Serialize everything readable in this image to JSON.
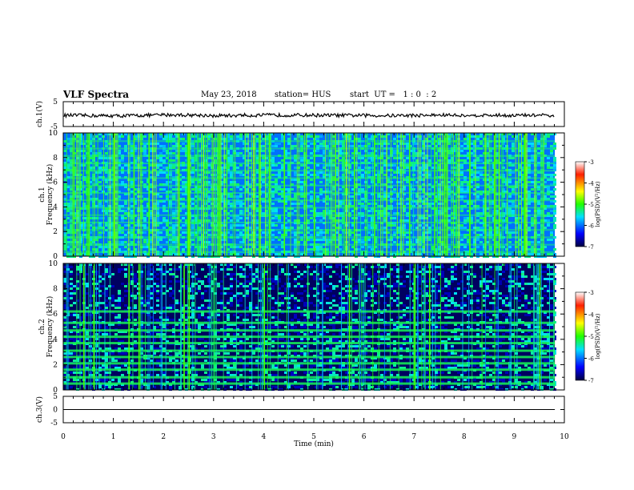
{
  "header": {
    "title": "VLF Spectra",
    "date": "May 23, 2018",
    "station": "station= HUS",
    "start": "start  UT =   1 : 0  : 2"
  },
  "chart_data": [
    {
      "type": "line",
      "panel": "ch1-waveform",
      "ylabel": "ch.1(V)",
      "ylim": [
        -5,
        5
      ],
      "yticks": [
        "5",
        "-5"
      ],
      "xlim": [
        0,
        10
      ],
      "series": [
        {
          "description_value": "noisy waveform ~ -0.5 V",
          "values_v": [
            -0.5,
            -0.7,
            -0.3,
            -0.6,
            -0.4,
            -0.5,
            -0.6,
            -0.4,
            -0.5,
            -0.5
          ]
        }
      ]
    },
    {
      "type": "heatmap",
      "panel": "ch1-spectrogram",
      "ylabel": "ch.1",
      "ylabel2": "Frequency (kHz)",
      "ylim": [
        0,
        10
      ],
      "yticks": [
        "0",
        "2",
        "4",
        "6",
        "8",
        "10"
      ],
      "xlim": [
        0,
        9.8
      ],
      "colorbar": {
        "label": "log(PSD)(V²/Hz)",
        "ticks": [
          "-3",
          "-4",
          "-5",
          "-6",
          "-7"
        ],
        "range": [
          -7,
          -3
        ]
      },
      "background_level": -6.0,
      "hum_bands_khz": [
        0.3,
        0.9,
        1.5,
        2.1,
        2.7,
        3.3,
        3.9,
        4.5,
        5.1,
        5.7,
        6.3,
        6.9,
        7.5,
        8.1,
        8.7,
        9.3
      ],
      "bright_impulses_min": [
        0.2,
        0.5,
        1.0,
        1.4,
        1.7,
        2.3,
        2.5,
        3.1,
        3.9,
        4.1,
        4.4,
        5.0,
        5.8,
        6.2,
        6.9,
        7.4,
        8.1,
        8.6,
        9.2
      ]
    },
    {
      "type": "heatmap",
      "panel": "ch2-spectrogram",
      "ylabel": "ch.2",
      "ylabel2": "Frequency (kHz)",
      "ylim": [
        0,
        10
      ],
      "yticks": [
        "0",
        "2",
        "4",
        "6",
        "8",
        "10"
      ],
      "xlim": [
        0,
        9.8
      ],
      "colorbar": {
        "label": "log(PSD)(V²/Hz)",
        "ticks": [
          "-3",
          "-4",
          "-5",
          "-6",
          "-7"
        ],
        "range": [
          -7,
          -3
        ]
      },
      "background_level": -6.9,
      "hum_bands_khz": [
        0.5,
        1.0,
        1.6,
        2.1,
        2.6,
        3.1,
        3.7,
        4.2,
        4.7,
        5.3,
        6.2
      ],
      "bright_impulses_min": [
        0.4,
        0.6,
        1.3,
        1.5,
        2.4,
        2.5,
        4.0,
        5.7,
        7.0,
        7.3,
        9.5
      ]
    },
    {
      "type": "line",
      "panel": "ch3-waveform",
      "ylabel": "ch.3(V)",
      "ylim": [
        -5,
        5
      ],
      "yticks": [
        "5",
        "0",
        "-5"
      ],
      "xlim": [
        0,
        10
      ],
      "series": [
        {
          "values_v": [
            0,
            0
          ]
        }
      ]
    }
  ],
  "xaxis": {
    "label": "Time (min)",
    "ticks": [
      "0",
      "1",
      "2",
      "3",
      "4",
      "5",
      "6",
      "7",
      "8",
      "9",
      "10"
    ]
  },
  "colors": {
    "low": "#000033",
    "mid": "#0000c8",
    "cyan": "#00d8ff",
    "green": "#1aff00",
    "yellow": "#ffff00",
    "red": "#ff0000"
  }
}
